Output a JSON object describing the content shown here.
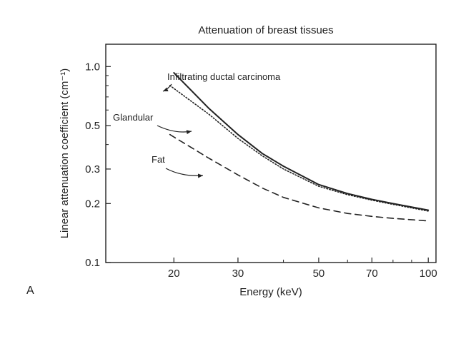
{
  "panel_label": "A",
  "chart_data": {
    "type": "line",
    "title": "Attenuation of breast tissues",
    "xlabel": "Energy (keV)",
    "ylabel": "Linear attenuation coefficient (cm⁻¹)",
    "xscale": "log",
    "yscale": "log",
    "xlim": [
      13,
      105
    ],
    "ylim": [
      0.1,
      1.3
    ],
    "xticks": [
      20,
      30,
      50,
      70,
      100
    ],
    "xtick_labels": [
      "20",
      "30",
      "50",
      "70",
      "100"
    ],
    "yticks": [
      0.1,
      0.2,
      0.3,
      0.5,
      1.0
    ],
    "ytick_labels": [
      "0.1",
      "0.2",
      "0.3",
      "0.5",
      "1.0"
    ],
    "grid": false,
    "legend": "none (direct labels)",
    "series": [
      {
        "name": "Infiltrating ductal carcinoma",
        "style": "solid",
        "x": [
          20,
          25,
          30,
          35,
          40,
          50,
          60,
          70,
          80,
          100
        ],
        "y": [
          0.93,
          0.61,
          0.45,
          0.36,
          0.31,
          0.25,
          0.225,
          0.21,
          0.2,
          0.185
        ]
      },
      {
        "name": "Glandular",
        "style": "dotted",
        "x": [
          19.5,
          25,
          30,
          35,
          40,
          50,
          60,
          70,
          80,
          100
        ],
        "y": [
          0.8,
          0.57,
          0.43,
          0.35,
          0.3,
          0.245,
          0.222,
          0.208,
          0.198,
          0.183
        ]
      },
      {
        "name": "Fat",
        "style": "dashed",
        "x": [
          19.5,
          25,
          30,
          35,
          40,
          50,
          60,
          70,
          80,
          100
        ],
        "y": [
          0.45,
          0.34,
          0.28,
          0.24,
          0.215,
          0.19,
          0.178,
          0.172,
          0.168,
          0.163
        ]
      }
    ]
  }
}
